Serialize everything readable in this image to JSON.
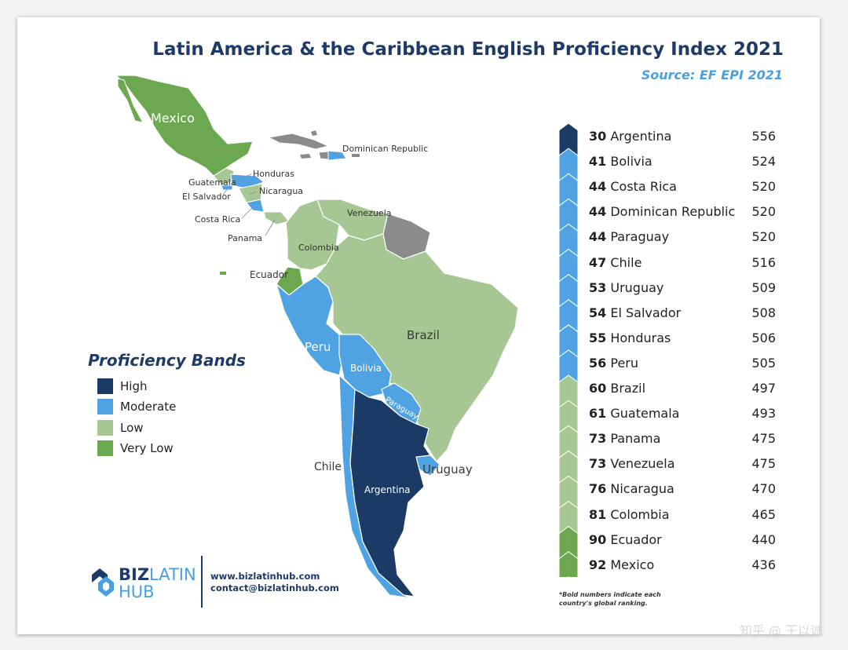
{
  "header": {
    "title": "Latin America & the Caribbean English Proficiency Index 2021",
    "source": "Source: EF EPI 2021"
  },
  "colors": {
    "high": "#1b3a66",
    "moderate": "#4fa3e3",
    "low": "#a6c793",
    "very_low": "#6ca84f",
    "no_data": "#8b8b8b",
    "title": "#1d3a68",
    "accent": "#4a9fe0"
  },
  "legend": {
    "title": "Proficiency Bands",
    "bands": [
      {
        "label": "High",
        "color": "#1b3a66"
      },
      {
        "label": "Moderate",
        "color": "#4fa3e3"
      },
      {
        "label": "Low",
        "color": "#a6c793"
      },
      {
        "label": "Very Low",
        "color": "#6ca84f"
      }
    ]
  },
  "map_labels": {
    "mexico": "Mexico",
    "dominican_republic": "Dominican Republic",
    "honduras": "Honduras",
    "guatemala": "Guatemala",
    "el_salvador": "El Salvador",
    "nicaragua": "Nicaragua",
    "costa_rica": "Costa Rica",
    "panama": "Panama",
    "venezuela": "Venezuela",
    "colombia": "Colombia",
    "ecuador": "Ecuador",
    "peru": "Peru",
    "brazil": "Brazil",
    "bolivia": "Bolivia",
    "paraguay": "Paraguay",
    "chile": "Chile",
    "uruguay": "Uruguay",
    "argentina": "Argentina"
  },
  "ranking": [
    {
      "rank": "30",
      "country": "Argentina",
      "score": "556",
      "band": "high"
    },
    {
      "rank": "41",
      "country": "Bolivia",
      "score": "524",
      "band": "moderate"
    },
    {
      "rank": "44",
      "country": "Costa Rica",
      "score": "520",
      "band": "moderate"
    },
    {
      "rank": "44",
      "country": "Dominican Republic",
      "score": "520",
      "band": "moderate"
    },
    {
      "rank": "44",
      "country": "Paraguay",
      "score": "520",
      "band": "moderate"
    },
    {
      "rank": "47",
      "country": "Chile",
      "score": "516",
      "band": "moderate"
    },
    {
      "rank": "53",
      "country": "Uruguay",
      "score": "509",
      "band": "moderate"
    },
    {
      "rank": "54",
      "country": "El Salvador",
      "score": "508",
      "band": "moderate"
    },
    {
      "rank": "55",
      "country": "Honduras",
      "score": "506",
      "band": "moderate"
    },
    {
      "rank": "56",
      "country": "Peru",
      "score": "505",
      "band": "moderate"
    },
    {
      "rank": "60",
      "country": "Brazil",
      "score": "497",
      "band": "low"
    },
    {
      "rank": "61",
      "country": "Guatemala",
      "score": "493",
      "band": "low"
    },
    {
      "rank": "73",
      "country": "Panama",
      "score": "475",
      "band": "low"
    },
    {
      "rank": "73",
      "country": "Venezuela",
      "score": "475",
      "band": "low"
    },
    {
      "rank": "76",
      "country": "Nicaragua",
      "score": "470",
      "band": "low"
    },
    {
      "rank": "81",
      "country": "Colombia",
      "score": "465",
      "band": "low"
    },
    {
      "rank": "90",
      "country": "Ecuador",
      "score": "440",
      "band": "very_low"
    },
    {
      "rank": "92",
      "country": "Mexico",
      "score": "436",
      "band": "very_low"
    }
  ],
  "footnote": "*Bold numbers indicate each country's global ranking.",
  "logo": {
    "word1": "BIZ",
    "word1b": "LATIN",
    "word2": "HUB"
  },
  "contact": {
    "website": "www.bizlatinhub.com",
    "email": "contact@bizlatinhub.com"
  },
  "watermark": "知乎 @ 王以诚"
}
